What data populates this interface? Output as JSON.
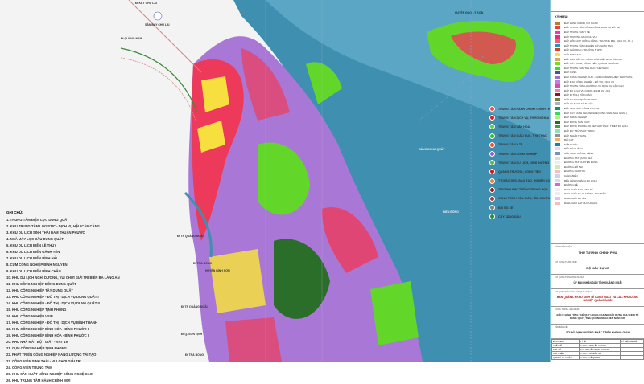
{
  "map": {
    "labels": {
      "north_road": "ĐI KKT CHU LAI",
      "west_road": "ĐI QUẢNG NAM",
      "airport": "SÂN BAY CHU LAI",
      "island": "HUYỆN ĐẢO LÝ SƠN",
      "port": "CẢNG DUNG QUẤT",
      "sea": "BIỂN ĐÔNG",
      "district": "HUYỆN BÌNH SƠN",
      "south_road1": "ĐI TP QUẢNG NGÃI",
      "south_road2": "ĐI TP QUẢNG NGÃI",
      "south_road3": "ĐI Q. SƠN TỊNH",
      "west_road2": "ĐI TRÀ BỒNG",
      "west_road3": "ĐI TRÀ BỒNG"
    },
    "colors": {
      "sea": "#3f8fb0",
      "land": "#f3f3f3",
      "industrial": "#a978d6",
      "residential": "#f7df40",
      "green": "#63d62a",
      "forest": "#2a6e2a",
      "commercial": "#ee3a5a"
    }
  },
  "notes": {
    "title": "GHI CHÚ:",
    "items": [
      "1. TRUNG TÂM ĐIỆN LỰC DUNG QUẤT",
      "2. KHU TRUNG TÂM LOGISTIC - DỊCH VỤ HẬU CẦN CẢNG",
      "3. KHU DU LỊCH SINH THÁI ĐẦM THUẬN PHƯỚC",
      "4. NHÀ MÁY LỌC DẦU DUNG QUẤT",
      "5. KHU DU LỊCH BIỂN LỆ THỦY",
      "6. KHU DU LỊCH BIỂN GÀNH YẾN",
      "7. KHU DU LỊCH BIỂN BÌNH HẢI",
      "8. CỤM CÔNG NGHIỆP BÌNH NGUYÊN",
      "9. KHU DU LỊCH BIỂN BÌNH CHÂU",
      "10. KHU DU LỊCH NGHỈ DƯỠNG, VUI CHƠI GIẢI TRÍ BIỂN BA LÀNG AN",
      "11. KHU CÔNG NGHIỆP ĐÔNG DUNG QUẤT",
      "12. KHU CÔNG NGHIỆP TÂY DUNG QUẤT",
      "13. KHU CÔNG NGHIỆP - ĐÔ THỊ - DỊCH VỤ DUNG QUẤT I",
      "14. KHU CÔNG NGHIỆP - ĐÔ THỊ - DỊCH VỤ DUNG QUẤT II",
      "15. KHU CÔNG NGHIỆP TỊNH PHONG",
      "16. KHU CÔNG NGHIỆP VSIP",
      "17. KHU CÔNG NGHIỆP - ĐÔ THỊ - DỊCH VỤ BÌNH THANH",
      "18. KHU CÔNG NGHIỆP BÌNH HÒA - BÌNH PHƯỚC I",
      "19. KHU CÔNG NGHIỆP BÌNH HÒA - BÌNH PHƯỚC II",
      "20. KHU NHÀ MÁY BỘT GIẤY - VNT 19",
      "21. CỤM CÔNG NGHIỆP TỊNH PHONG",
      "22. PHÁT TRIỂN CÔNG NGHIỆP NĂNG LƯỢNG TÁI TẠO",
      "23. CÔNG VIÊN SINH THÁI - VUI CHƠI GIẢI TRÍ",
      "24. CÔNG VIÊN TRUNG TÂM",
      "25. KHU SẢN XUẤT NÔNG NGHIỆP CÔNG NGHỆ CAO",
      "26. KHU TRUNG TÂM HÀNH CHÍNH MỚI"
    ]
  },
  "symbols": [
    {
      "label": "TRUNG TÂM HÀNH CHÍNH, CHÍNH TRỊ",
      "color": "#e85050",
      "icon": "admin-center-icon"
    },
    {
      "label": "TRUNG TÂM DỊCH VỤ, THƯƠNG MẠI",
      "color": "#e02020",
      "icon": "commerce-icon"
    },
    {
      "label": "TRUNG TÂM VĂN HÓA",
      "color": "#60d040",
      "icon": "culture-icon"
    },
    {
      "label": "TRUNG TÂM GIÁO DỤC, THỂ THAO",
      "color": "#30c030",
      "icon": "sport-icon"
    },
    {
      "label": "TRUNG TÂM Y TẾ",
      "color": "#f05030",
      "icon": "health-icon"
    },
    {
      "label": "TRUNG TÂM CÔNG NGHIỆP",
      "color": "#9060d0",
      "icon": "industry-icon"
    },
    {
      "label": "TRUNG TÂM DU LỊCH, NGHỈ DƯỠNG",
      "color": "#50c050",
      "icon": "tourism-icon"
    },
    {
      "label": "QUẢNG TRƯỜNG, CÔNG VIÊN",
      "color": "#e01010",
      "icon": "square-icon"
    },
    {
      "label": "TT GIÁO DỤC, ĐÀO TẠO, NGHIÊN CỨU",
      "color": "#f08030",
      "icon": "education-icon"
    },
    {
      "label": "TRƯỜNG PHỔ THÔNG TRUNG HỌC",
      "color": "#902020",
      "icon": "school-icon"
    },
    {
      "label": "CÔNG TRÌNH TÔN GIÁO, TÍN NGƯỠNG",
      "color": "#a04040",
      "icon": "religion-icon"
    },
    {
      "label": "BÃI ĐỖ XE",
      "color": "#808080",
      "icon": "parking-icon"
    },
    {
      "label": "CÂY XĂNG DẦU",
      "color": "#209040",
      "icon": "fuel-icon"
    }
  ],
  "legend": {
    "title": "KÝ HIỆU:",
    "items": [
      {
        "label": "ĐẤT HÀNH CHÍNH, CƠ QUAN",
        "color": "#c0782a"
      },
      {
        "label": "ĐẤT TRUNG TÂM CÔNG CỘNG, DỊCH VỤ ĐÔ THỊ",
        "color": "#f03c3c"
      },
      {
        "label": "ĐẤT TRUNG TÂM Y TẾ",
        "color": "#ff2fb0"
      },
      {
        "label": "ĐẤT THƯƠNG MẠI DỊCH VỤ",
        "color": "#e0307a"
      },
      {
        "label": "ĐẤT HỖN HỢP (CÔNG CỘNG, THƯƠNG MẠI, DỊCH VỤ, Ở...)",
        "color": "#f06070"
      },
      {
        "label": "ĐẤT TRUNG TÂM NGHIÊN CỨU, ĐÀO TẠO",
        "color": "#1a9ac0"
      },
      {
        "label": "ĐẤT GIÁO DỤC (TRƯỜNG THPT)",
        "color": "#e04020"
      },
      {
        "label": "ĐẤT ĐƠN VỊ Ở",
        "color": "#f7e040"
      },
      {
        "label": "ĐẤT KHU DÂN CƯ, LÀNG XÓM HIỆN HỮU CẢI TẠO",
        "color": "#d6a868"
      },
      {
        "label": "ĐẤT CÂY XANH, CÔNG VIÊN, QUẢNG TRƯỜNG",
        "color": "#70e020"
      },
      {
        "label": "ĐẤT TRUNG TÂM THỂ DỤC THỂ THAO",
        "color": "#30e030"
      },
      {
        "label": "ĐẤT CẢNG",
        "color": "#5050a0"
      },
      {
        "label": "ĐẤT CÔNG NGHIỆP, KHO - CỤM CÔNG NGHIỆP, KHO TÀNG",
        "color": "#a070d0"
      },
      {
        "label": "ĐẤT KHU CÔNG NGHIỆP - ĐÔ THỊ, DỊCH VỤ",
        "color": "#c080e0"
      },
      {
        "label": "ĐẤT TRUNG TÂM LOGISTICS VÀ DỊCH VỤ HẬU CẦN",
        "color": "#d050b0"
      },
      {
        "label": "ĐẤT DU LỊCH, VUI CHƠI - ĐIỂM DU LỊCH",
        "color": "#f080c0"
      },
      {
        "label": "ĐẤT DI TÍCH, TÔN GIÁO",
        "color": "#a01010"
      },
      {
        "label": "ĐẤT AN NINH QUỐC PHÒNG",
        "color": "#708040"
      },
      {
        "label": "ĐẤT HẠ TẦNG KỸ THUẬT",
        "color": "#b0b0c0"
      },
      {
        "label": "ĐẤT SẢN XUẤT NĂNG LƯỢNG",
        "color": "#109070"
      },
      {
        "label": "ĐẤT CÂY XANH CHUYÊN ĐỀ (CÔNG VIÊN, SÂN GÔN...)",
        "color": "#30e050"
      },
      {
        "label": "ĐẤT NÔNG NGHIỆP",
        "color": "#b0f080"
      },
      {
        "label": "ĐẤT RỪNG SẢN XUẤT",
        "color": "#207020"
      },
      {
        "label": "ĐẤT RỪNG PHÒNG HỘ KẾT HỢP PHÁT TRIỂN DU LỊCH",
        "color": "#40a040"
      },
      {
        "label": "ĐẤT DỰ TRỮ PHÁT TRIỂN",
        "color": "#90e0c0"
      },
      {
        "label": "ĐẤT NGHĨA TRANG",
        "color": "#909090"
      },
      {
        "label": "BÃI CÁT",
        "color": "#f5b070"
      },
      {
        "label": "MẶT NƯỚC",
        "color": "#1080c0"
      },
      {
        "label": "BẾN ĐÒ KHÁCH",
        "color": "#dde"
      },
      {
        "label": "CẦU GIAO THÔNG, KÊNH",
        "color": "#8090b0"
      },
      {
        "label": "ĐƯỜNG SẮT QUỐC GIA",
        "color": "#ddd"
      },
      {
        "label": "ĐƯỜNG SẮT CHUYÊN DÙNG",
        "color": "#eee"
      },
      {
        "label": "ĐƯỜNG ĐÔ THỊ",
        "color": "#cfe8c0"
      },
      {
        "label": "ĐƯỜNG CAO TỐC",
        "color": "#f0c0c0"
      },
      {
        "label": "CẢNG BIỂN",
        "color": "#d0d0f0"
      },
      {
        "label": "BẾN HÀNH KHÁCH DU LỊCH",
        "color": "#d0e0f0"
      },
      {
        "label": "ĐƯỜNG ĐÊ",
        "color": "#e060e0"
      },
      {
        "label": "RANH GIỚI KHU KINH TẾ",
        "color": "#eee"
      },
      {
        "label": "RANH GIỚI XÃ, PHƯỜNG, THỊ TRẤN",
        "color": "#eee"
      },
      {
        "label": "RANH GIỚI HUYỆN",
        "color": "#e0c0f0"
      },
      {
        "label": "RANH GIỚI LẬP QUY HOẠCH",
        "color": "#f0c0c0"
      }
    ]
  },
  "title_block": {
    "approve_label": "CẤP PHÊ DUYỆT:",
    "approver": "THỦ TƯỚNG CHÍNH PHỦ",
    "org1_label": "CƠ QUAN THẨM ĐỊNH:",
    "org1": "BỘ XÂY DỰNG",
    "org2_label": "CƠ QUAN TRÌNH PHÊ DUYỆT:",
    "org2": "ỦY BAN NHÂN DÂN TỈNH QUẢNG NGÃI",
    "org3_label": "CƠ QUAN TỔ CHỨC LẬP QUY HOẠCH:",
    "org3": "BAN QUẢN LÝ KHU KINH TẾ DUNG QUẤT VÀ CÁC KHU CÔNG NGHIỆP QUẢNG NGÃI",
    "project_label": "CÔNG TRÌNH - ĐỊA ĐIỂM:",
    "project": "ĐIỀU CHỈNH TỔNG THỂ QUY HOẠCH CHUNG XÂY DỰNG KHU KINH TẾ DUNG QUẤT, TỈNH QUẢNG NGÃI ĐẾN NĂM 2045",
    "drawing_label": "TÊN BẢN VẼ:",
    "drawing": "SƠ ĐỒ ĐỊNH HƯỚNG PHÁT TRIỂN KHÔNG GIAN",
    "table": [
      [
        "ĐƠN VỊ ĐO",
        "TỶ LỆ",
        "KÝ HIỆU BẢN VẼ"
      ],
      [
        "THIẾT KẾ",
        "THS.KTS NGUYỄN THỊ HOA",
        ""
      ],
      [
        "CHỦ TRÌ",
        "KTS. NGUYỄN NGỌC PHƯƠNG",
        ""
      ],
      [
        "CHỦ NHIỆM",
        "THS.KTS. BÙI ĐẮC HẢI",
        ""
      ],
      [
        "QUẢN LÝ KỸ THUẬT",
        "THS.KTS. LÊ QUANG",
        ""
      ]
    ]
  }
}
